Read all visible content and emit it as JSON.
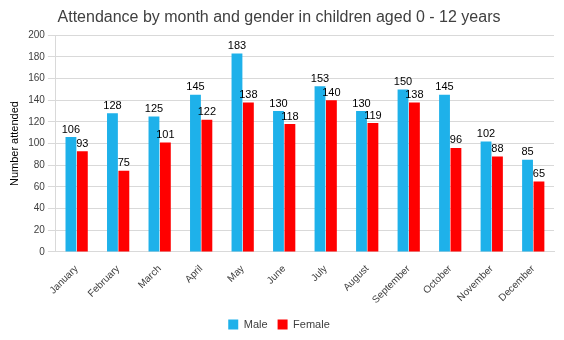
{
  "chart_data": {
    "type": "bar",
    "title": "Attendance by month and gender in children aged 0 - 12 years",
    "y_label": "Number attended",
    "categories": [
      "January",
      "February",
      "March",
      "April",
      "May",
      "June",
      "July",
      "August",
      "September",
      "October",
      "November",
      "December"
    ],
    "series": [
      {
        "name": "Male",
        "color": "#1eb1ea",
        "values": [
          106,
          128,
          125,
          145,
          183,
          130,
          153,
          130,
          150,
          145,
          102,
          85
        ]
      },
      {
        "name": "Female",
        "color": "#ff0000",
        "values": [
          93,
          75,
          101,
          122,
          138,
          118,
          140,
          119,
          138,
          96,
          88,
          65
        ]
      }
    ],
    "ylim": [
      0,
      200
    ],
    "yticks": [
      0,
      20,
      40,
      60,
      80,
      100,
      120,
      140,
      160,
      180,
      200
    ],
    "grid": true,
    "legend": "bottom",
    "data_labels": true
  }
}
